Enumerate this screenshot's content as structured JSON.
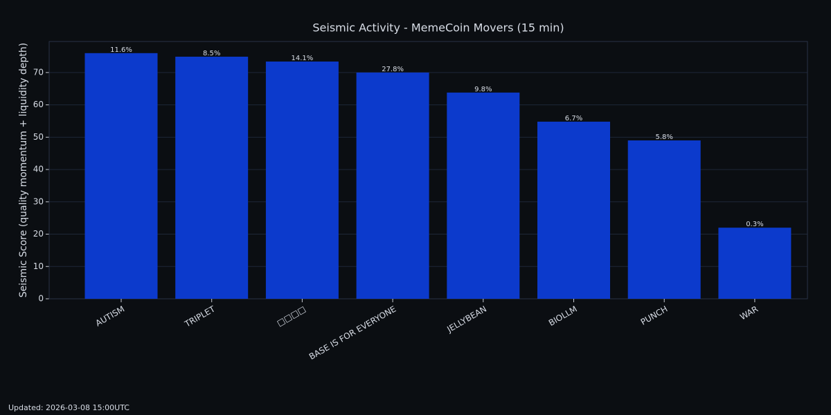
{
  "chart_data": {
    "type": "bar",
    "title": "Seismic Activity - MemeCoin Movers (15 min)",
    "y_label": "Seismic Score (quality momentum + liquidity depth)",
    "categories": [
      "AUTISM",
      "TRIPLET",
      "□□□□",
      "BASE IS FOR EVERYONE",
      "JELLYBEAN",
      "BIOLLM",
      "PUNCH",
      "WAR"
    ],
    "values": [
      76.0,
      74.9,
      73.4,
      70.0,
      63.8,
      54.8,
      49.0,
      22.0
    ],
    "bar_labels": [
      "11.6%",
      "8.5%",
      "14.1%",
      "27.8%",
      "9.8%",
      "6.7%",
      "5.8%",
      "0.3%"
    ],
    "color": "#0c3acc",
    "ylim": [
      0,
      79.6
    ],
    "yticks": [
      0,
      10,
      20,
      30,
      40,
      50,
      60,
      70
    ],
    "grid": true,
    "footer": "Updated: 2026-03-08 15:00UTC"
  }
}
